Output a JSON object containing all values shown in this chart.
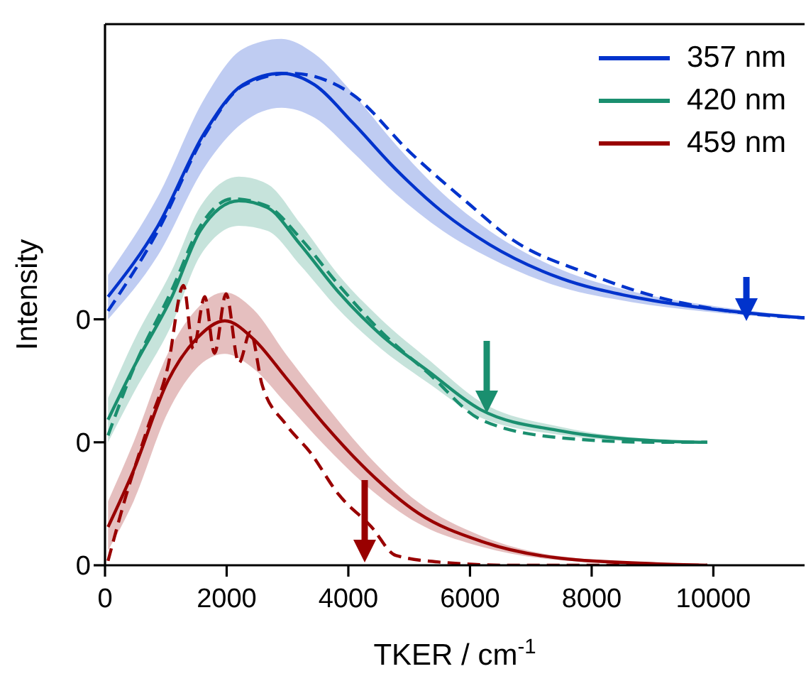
{
  "chart_data": {
    "type": "line",
    "xlabel": "TKER / cm$^{-1}$",
    "ylabel": "Intensity",
    "xlim": [
      0,
      11500
    ],
    "xticks": [
      0,
      2000,
      4000,
      6000,
      8000,
      10000
    ],
    "ylim": [
      0,
      1.1
    ],
    "yticks": [
      {
        "value": 0,
        "label": "0"
      },
      {
        "value": 0.25,
        "label": "0"
      },
      {
        "value": 0.5,
        "label": "0"
      }
    ],
    "legend": "top right",
    "grid": false,
    "series": [
      {
        "name": "357 nm",
        "color": "#0033cc",
        "line_style": "solid",
        "x": [
          50,
          870,
          1640,
          2270,
          2900,
          3440,
          4070,
          4780,
          5550,
          6320,
          7500,
          8660,
          9840,
          11500
        ],
        "values": [
          0.546,
          0.69,
          0.88,
          0.977,
          1.0,
          0.977,
          0.9,
          0.805,
          0.718,
          0.652,
          0.583,
          0.546,
          0.523,
          0.503
        ],
        "lower": [
          0.5,
          0.63,
          0.81,
          0.9,
          0.93,
          0.91,
          0.84,
          0.755,
          0.68,
          0.625,
          0.565,
          0.535,
          0.516,
          0.5
        ],
        "upper": [
          0.59,
          0.75,
          0.95,
          1.05,
          1.07,
          1.04,
          0.96,
          0.855,
          0.756,
          0.68,
          0.601,
          0.557,
          0.53,
          0.506
        ]
      },
      {
        "color": "#0033cc",
        "line_style": "dashed",
        "x": [
          50,
          870,
          1640,
          2270,
          3050,
          4070,
          5010,
          5950,
          6720,
          7890,
          9060,
          10630,
          11500
        ],
        "values": [
          0.517,
          0.68,
          0.875,
          0.975,
          1.0,
          0.957,
          0.84,
          0.738,
          0.66,
          0.595,
          0.546,
          0.511,
          0.503
        ]
      },
      {
        "name": "420 nm",
        "color": "#1a8f6f",
        "line_style": "solid",
        "x": [
          50,
          470,
          1100,
          1570,
          2200,
          2670,
          3210,
          3840,
          4540,
          5320,
          6180,
          7500,
          9060,
          9900
        ],
        "values": [
          0.296,
          0.402,
          0.546,
          0.681,
          0.741,
          0.727,
          0.652,
          0.555,
          0.468,
          0.394,
          0.316,
          0.273,
          0.253,
          0.25
        ],
        "lower": [
          0.25,
          0.35,
          0.49,
          0.63,
          0.69,
          0.68,
          0.61,
          0.52,
          0.44,
          0.37,
          0.3,
          0.265,
          0.25,
          0.248
        ],
        "upper": [
          0.34,
          0.455,
          0.6,
          0.73,
          0.79,
          0.775,
          0.695,
          0.59,
          0.5,
          0.418,
          0.332,
          0.281,
          0.256,
          0.252
        ]
      },
      {
        "color": "#1a8f6f",
        "line_style": "dashed",
        "x": [
          50,
          470,
          1100,
          1570,
          2100,
          2670,
          3210,
          3840,
          4540,
          5320,
          6180,
          7500,
          9060,
          9900
        ],
        "values": [
          0.264,
          0.4,
          0.56,
          0.69,
          0.745,
          0.73,
          0.665,
          0.57,
          0.475,
          0.39,
          0.296,
          0.259,
          0.25,
          0.25
        ]
      },
      {
        "name": "459 nm",
        "color": "#990000",
        "line_style": "solid",
        "x": [
          50,
          470,
          1030,
          1500,
          1970,
          2440,
          2970,
          3600,
          4310,
          5150,
          6180,
          7500,
          9060,
          9900
        ],
        "values": [
          0.078,
          0.193,
          0.374,
          0.46,
          0.497,
          0.46,
          0.382,
          0.287,
          0.193,
          0.106,
          0.049,
          0.014,
          0.003,
          0
        ],
        "lower": [
          0.03,
          0.13,
          0.31,
          0.4,
          0.43,
          0.4,
          0.33,
          0.245,
          0.16,
          0.085,
          0.038,
          0.01,
          0.002,
          0
        ],
        "upper": [
          0.13,
          0.25,
          0.43,
          0.52,
          0.555,
          0.52,
          0.43,
          0.33,
          0.225,
          0.128,
          0.06,
          0.018,
          0.005,
          0.001
        ]
      },
      {
        "color": "#990000",
        "line_style": "dashed",
        "x": [
          50,
          330,
          700,
          1030,
          1290,
          1450,
          1640,
          1800,
          1990,
          2200,
          2390,
          2580,
          2970,
          3370,
          3840,
          4380,
          4780,
          5550,
          6700,
          9900
        ],
        "values": [
          0.009,
          0.135,
          0.279,
          0.402,
          0.569,
          0.44,
          0.546,
          0.431,
          0.552,
          0.411,
          0.474,
          0.368,
          0.287,
          0.23,
          0.144,
          0.078,
          0.02,
          0.006,
          0,
          0
        ]
      }
    ]
  }
}
